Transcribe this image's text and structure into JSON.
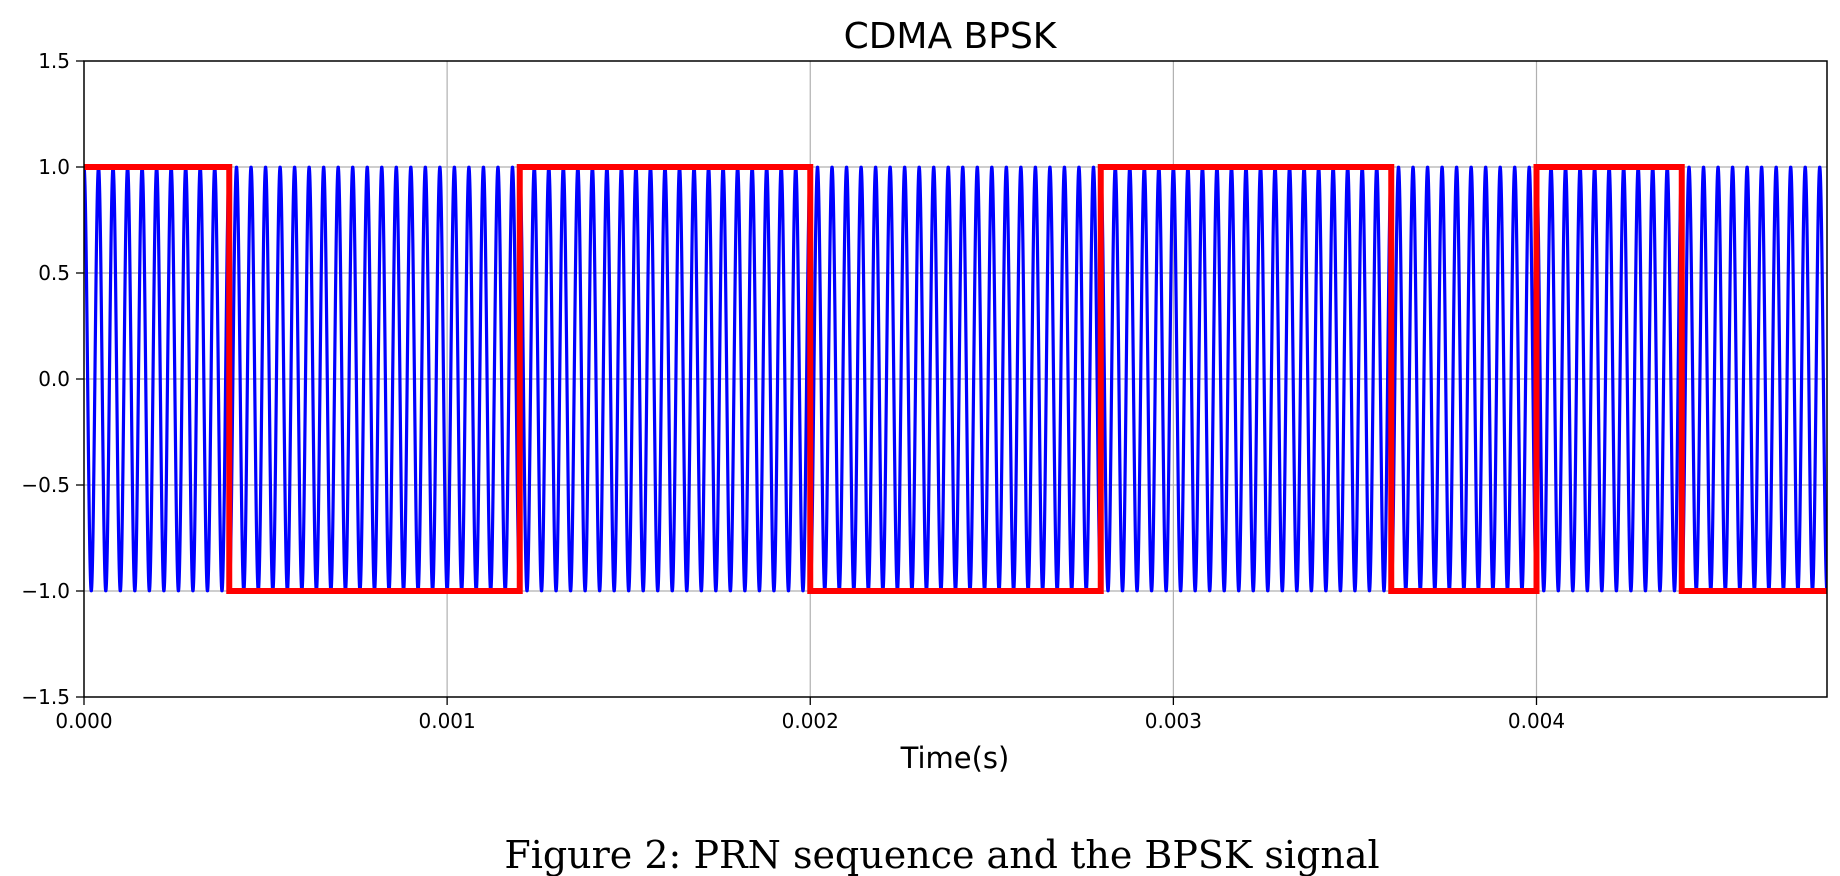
{
  "chart_data": {
    "type": "line",
    "title": "CDMA BPSK",
    "xlabel": "Time(s)",
    "ylabel": "",
    "xlim": [
      0,
      0.0048
    ],
    "ylim": [
      -1.5,
      1.5
    ],
    "grid": true,
    "x_ticks": [
      0,
      0.001,
      0.002,
      0.003,
      0.004
    ],
    "x_tick_labels": [
      "0.000",
      "0.001",
      "0.002",
      "0.003",
      "0.004"
    ],
    "y_ticks": [
      1.5,
      1.0,
      0.5,
      0.0,
      -0.5,
      -1.0,
      -1.5
    ],
    "y_tick_labels": [
      "1.5",
      "1.0",
      "0.5",
      "0.0",
      "−0.5",
      "−1.0",
      "−1.5"
    ],
    "caption": "Figure 2: PRN sequence and the BPSK signal",
    "series": [
      {
        "kind": "step",
        "color": "#ff0000",
        "segments": [
          {
            "x0": 0.0,
            "x1": 0.0004,
            "y": 1
          },
          {
            "x0": 0.0004,
            "x1": 0.0012,
            "y": -1
          },
          {
            "x0": 0.0012,
            "x1": 0.002,
            "y": 1
          },
          {
            "x0": 0.002,
            "x1": 0.0028,
            "y": -1
          },
          {
            "x0": 0.0028,
            "x1": 0.0036,
            "y": 1
          },
          {
            "x0": 0.0036,
            "x1": 0.004,
            "y": -1
          },
          {
            "x0": 0.004,
            "x1": 0.0044,
            "y": 1
          },
          {
            "x0": 0.0044,
            "x1": 0.0048,
            "y": -1
          }
        ]
      },
      {
        "kind": "bpsk",
        "color": "#0000ff",
        "carrier_frequency_hz": 25000,
        "amplitude": 1
      }
    ]
  }
}
